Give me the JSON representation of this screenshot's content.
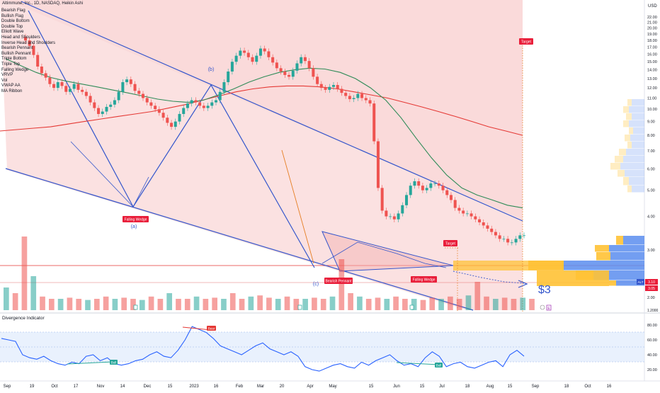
{
  "header": {
    "symbol_line": "Altimmune, Inc., 1D, NASDAQ, Heikin Ashi"
  },
  "indicator_list": [
    "Bearish Flag",
    "Bullish Flag",
    "Double Bottom",
    "Double Top",
    "Elliott Wave",
    "Head and Shoulders",
    "Inverse Head and Shoulders",
    "Bearish Pennant",
    "Bullish Pennant",
    "Triple Bottom",
    "Triple Top",
    "Falling Wedge",
    "VRVP",
    "Vol",
    "VWAP AA",
    "MA Ribbon"
  ],
  "oscillator": {
    "title": "Divergence Indicator",
    "labels": {
      "bull1": "Bull",
      "bear": "Bear",
      "bull2": "Bull"
    },
    "axis_ticks": [
      "80.00",
      "60.00",
      "40.00",
      "20.00"
    ]
  },
  "annotations": {
    "wave_a": "(a)",
    "wave_b": "(b)",
    "wave_c": "(c)",
    "falling_wedge_1": "Falling Wedge",
    "falling_wedge_2": "Falling Wedge",
    "bearish_pennant": "Bearish Pennant",
    "target_1": "Target",
    "target_2": "Target",
    "price_target": "$3",
    "flag_e": "E",
    "flag_b": "B"
  },
  "price_axis": {
    "currency": "USD",
    "last_price_ticker": "ALT",
    "last_price": "3.10",
    "last_price_2": "3.05",
    "bottom_tick": "1.2000"
  },
  "colors": {
    "channel_fill": "#f8c8c8",
    "channel_line": "#3355cc",
    "bull_candle": "#26a69a",
    "bear_candle": "#ef5350",
    "ma_green": "#2e8b57",
    "ma_red": "#e53935",
    "vrvp_blue": "#5b8def",
    "vrvp_yellow": "#ffc235",
    "oscillator_line": "#2962ff",
    "label_red": "#e91e3a"
  },
  "chart_data": {
    "type": "line",
    "title": "Altimmune, Inc., 1D, NASDAQ, Heikin Ashi",
    "xlabel": "",
    "ylabel": "",
    "x_ticks": [
      "Sep",
      "19",
      "Oct",
      "17",
      "Nov",
      "14",
      "Dec",
      "15",
      "2023",
      "16",
      "Feb",
      "Mar",
      "20",
      "Apr",
      "May",
      "15",
      "Jun",
      "15",
      "Jul",
      "18",
      "Aug",
      "15",
      "Sep",
      "18",
      "Oct",
      "16"
    ],
    "y_ticks": [
      22,
      21,
      20,
      19,
      18,
      17,
      16,
      15,
      14,
      13,
      12,
      11,
      10,
      9,
      8,
      7,
      6,
      5,
      4,
      3,
      2
    ],
    "ylim": [
      1.2,
      22.5
    ],
    "y_scale": "log",
    "series": [
      {
        "values": [
          18.0,
          17.2,
          15.9,
          14.4,
          13.6,
          13.1,
          12.4,
          12.0,
          12.6,
          12.2,
          11.6,
          11.9,
          12.4,
          11.8,
          11.6,
          11.2,
          10.6,
          10.1,
          9.6,
          9.8,
          10.2,
          10.4,
          10.8,
          11.6,
          12.6,
          12.9,
          12.4,
          11.7,
          11.4,
          11.0,
          10.6,
          10.3,
          10.0,
          9.7,
          9.3,
          8.9,
          8.6,
          9.0,
          9.6,
          10.1,
          10.5,
          10.8,
          10.6,
          10.3,
          10.1,
          10.3,
          10.6,
          10.8,
          11.6,
          12.6,
          13.8,
          15.0,
          15.8,
          16.5,
          16.2,
          15.6,
          15.0,
          15.8,
          16.8,
          16.4,
          15.6,
          14.9,
          14.2,
          13.8,
          13.4,
          13.2,
          13.9,
          14.8,
          15.6,
          15.1,
          14.2,
          13.2,
          12.4,
          12.0,
          11.8,
          12.1,
          12.3,
          11.9,
          11.5,
          11.2,
          10.9,
          11.0,
          11.4,
          11.0,
          10.8,
          10.5,
          7.6,
          5.1,
          4.2,
          4.0,
          4.0,
          3.9,
          4.1,
          4.4,
          4.8,
          5.2,
          5.4,
          5.2,
          5.0,
          5.1,
          5.3,
          5.3,
          5.2,
          5.0,
          4.8,
          4.6,
          4.3,
          4.2,
          4.1,
          4.1,
          4.0,
          3.9,
          3.8,
          3.7,
          3.6,
          3.5,
          3.4,
          3.3,
          3.3,
          3.2,
          3.2,
          3.3,
          3.4,
          3.4
        ]
      }
    ],
    "moving_averages": [
      {
        "color": "green",
        "values": [
          15.4,
          14.5,
          13.7,
          13.1,
          12.7,
          12.4,
          12.1,
          11.8,
          11.5,
          11.2,
          10.9,
          10.7,
          10.6,
          10.8,
          11.3,
          11.9,
          12.6,
          13.2,
          13.7,
          14.0,
          14.2,
          14.1,
          13.7,
          13.0,
          12.0,
          10.8,
          9.3,
          7.8,
          6.6,
          5.7,
          5.1,
          4.8,
          4.6,
          4.4,
          4.3
        ]
      },
      {
        "color": "red",
        "values": [
          8.3,
          8.4,
          8.5,
          8.6,
          8.8,
          9.0,
          9.2,
          9.4,
          9.6,
          9.8,
          10.1,
          10.4,
          10.8,
          11.2,
          11.6,
          11.9,
          12.1,
          12.2,
          12.2,
          12.1,
          11.9,
          11.6,
          11.3,
          11.0,
          10.6,
          10.2,
          9.8,
          9.4,
          9.0,
          8.6,
          8.3,
          8.0
        ]
      }
    ],
    "volume": [
      2,
      1.5,
      6.5,
      3,
      1.2,
      1,
      1,
      1.1,
      1,
      0.9,
      1,
      1.2,
      1,
      1.1,
      1,
      0.9,
      1.2,
      1,
      1.5,
      1,
      1,
      1.2,
      1,
      1.1,
      1,
      1.5,
      1,
      1.2,
      1.3,
      1.1,
      1,
      1.2,
      1,
      1,
      1.1,
      1,
      1.2,
      4.5,
      1.5,
      1.2,
      1,
      1.1,
      1,
      1.2,
      1,
      1,
      0.9,
      1.1,
      1,
      1.2,
      1,
      1.3,
      2.5,
      1.2,
      1,
      1.1,
      1,
      1.1,
      1
    ],
    "oscillator_values": [
      62,
      60,
      58,
      40,
      36,
      34,
      38,
      32,
      28,
      26,
      30,
      28,
      38,
      40,
      32,
      36,
      28,
      26,
      28,
      32,
      34,
      40,
      44,
      38,
      36,
      46,
      60,
      78,
      74,
      70,
      62,
      52,
      48,
      44,
      40,
      46,
      52,
      56,
      48,
      44,
      40,
      44,
      38,
      24,
      20,
      18,
      22,
      26,
      28,
      24,
      22,
      30,
      26,
      32,
      36,
      40,
      32,
      26,
      28,
      24,
      36,
      44,
      38,
      24,
      28,
      30,
      24,
      22,
      26,
      30,
      32,
      24,
      40,
      46,
      38
    ]
  }
}
